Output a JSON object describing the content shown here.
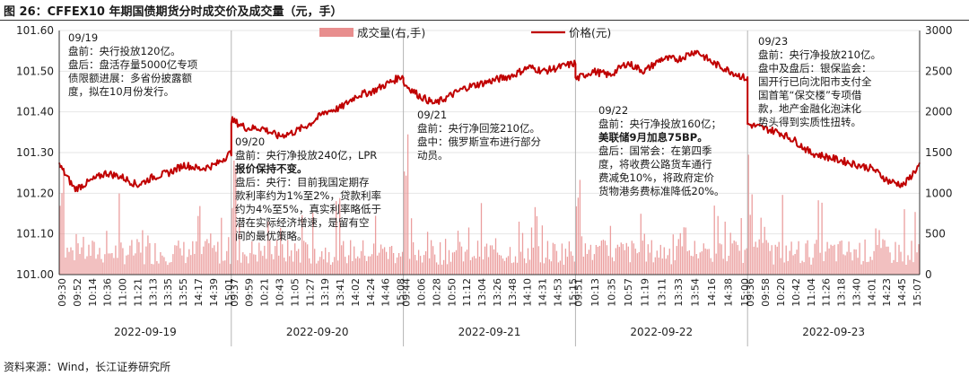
{
  "figure": {
    "title": "图 26：CFFEX10 年期国债期货分时成交价及成交量（元，手）",
    "source": "资料来源：Wind，长江证券研究所"
  },
  "colors": {
    "price": "#c00000",
    "volume": "#e88e8e",
    "axis": "#333333"
  },
  "chart_data": {
    "type": "line+bar",
    "title": "CFFEX10 年期国债期货分时成交价及成交量（元，手）",
    "legend": [
      {
        "name": "成交量(右,手)",
        "type": "bar"
      },
      {
        "name": "价格(元)",
        "type": "line"
      }
    ],
    "y_left": {
      "min": 101.0,
      "max": 101.6,
      "ticks": [
        "101.00",
        "101.10",
        "101.20",
        "101.30",
        "101.40",
        "101.50",
        "101.60"
      ]
    },
    "y_right": {
      "min": 0,
      "max": 3000,
      "ticks": [
        "0",
        "500",
        "1000",
        "1500",
        "2000",
        "2500",
        "3000"
      ]
    },
    "days": [
      {
        "date": "2022-09-19",
        "times": [
          "09:30",
          "09:52",
          "10:14",
          "10:36",
          "11:00",
          "11:21",
          "13:13",
          "13:35",
          "13:55",
          "14:17",
          "14:39",
          "15:01"
        ],
        "price": [
          101.27,
          101.21,
          101.23,
          101.25,
          101.24,
          101.22,
          101.24,
          101.25,
          101.27,
          101.26,
          101.27,
          101.3
        ]
      },
      {
        "date": "2022-09-20",
        "times": [
          "09:37",
          "09:59",
          "10:21",
          "10:43",
          "11:05",
          "11:27",
          "13:19",
          "13:41",
          "14:02",
          "14:24",
          "14:46",
          "15:08"
        ],
        "price": [
          101.38,
          101.36,
          101.36,
          101.34,
          101.35,
          101.37,
          101.4,
          101.41,
          101.44,
          101.45,
          101.47,
          101.49
        ]
      },
      {
        "date": "2022-09-21",
        "times": [
          "09:44",
          "10:06",
          "10:28",
          "10:50",
          "11:12",
          "13:04",
          "13:26",
          "13:48",
          "14:10",
          "14:31",
          "14:53",
          "15:15"
        ],
        "price": [
          101.47,
          101.44,
          101.42,
          101.44,
          101.46,
          101.47,
          101.48,
          101.49,
          101.51,
          101.5,
          101.51,
          101.52
        ]
      },
      {
        "date": "2022-09-22",
        "times": [
          "09:51",
          "10:13",
          "10:35",
          "10:57",
          "11:19",
          "13:11",
          "13:33",
          "13:54",
          "14:16",
          "14:38",
          "15:00"
        ],
        "price": [
          101.48,
          101.5,
          101.49,
          101.52,
          101.5,
          101.53,
          101.53,
          101.55,
          101.52,
          101.5,
          101.48
        ]
      },
      {
        "date": "2022-09-23",
        "times": [
          "09:36",
          "09:58",
          "10:20",
          "10:42",
          "11:04",
          "11:26",
          "13:18",
          "13:40",
          "14:01",
          "14:23",
          "14:45",
          "15:07"
        ],
        "price": [
          101.37,
          101.36,
          101.35,
          101.33,
          101.3,
          101.29,
          101.28,
          101.27,
          101.26,
          101.23,
          101.22,
          101.27
        ]
      }
    ]
  },
  "annotations": [
    {
      "lines": [
        {
          "text": "09/19"
        },
        {
          "text": "盘前：央行投放120亿。"
        },
        {
          "text": "盘后：盘活存量5000亿专项"
        },
        {
          "text": "债限额进展：多省份披露额"
        },
        {
          "text": "度，拟在10月份发行。"
        }
      ]
    },
    {
      "lines": [
        {
          "text": "09/20"
        },
        {
          "text": "盘前：央行净投放240亿，LPR"
        },
        {
          "text": "报价保持不变。",
          "bold": true
        },
        {
          "text": "盘后：央行：目前我国定期存"
        },
        {
          "text": "款利率约为1%至2%，贷款利率"
        },
        {
          "text": "约为4%至5%，真实利率略低于"
        },
        {
          "text": "潜在实际经济增速，是留有空"
        },
        {
          "text": "间的最优策略。"
        }
      ]
    },
    {
      "lines": [
        {
          "text": "09/21"
        },
        {
          "text": "盘前：央行净回笼210亿。"
        },
        {
          "text": "盘中：俄罗斯宣布进行部分"
        },
        {
          "text": "动员。"
        }
      ]
    },
    {
      "lines": [
        {
          "text": "09/22"
        },
        {
          "text": "盘前：央行净投放160亿；"
        },
        {
          "text": "美联储9月加息75BP。",
          "bold": true
        },
        {
          "text": "盘后：国常会：在第四季"
        },
        {
          "text": "度，将收费公路货车通行"
        },
        {
          "text": "费减免10%，将政府定价"
        },
        {
          "text": "货物港务费标准降低20%。"
        }
      ]
    },
    {
      "lines": [
        {
          "text": "09/23"
        },
        {
          "text": "盘前：央行净投放210亿。"
        },
        {
          "text": "盘中及盘后：银保监会："
        },
        {
          "text": "国开行已向沈阳市支付全"
        },
        {
          "text": "国首笔“保交楼”专项借"
        },
        {
          "text": "款，地产金融化泡沫化"
        },
        {
          "text": "势头得到实质性扭转。"
        }
      ]
    }
  ]
}
